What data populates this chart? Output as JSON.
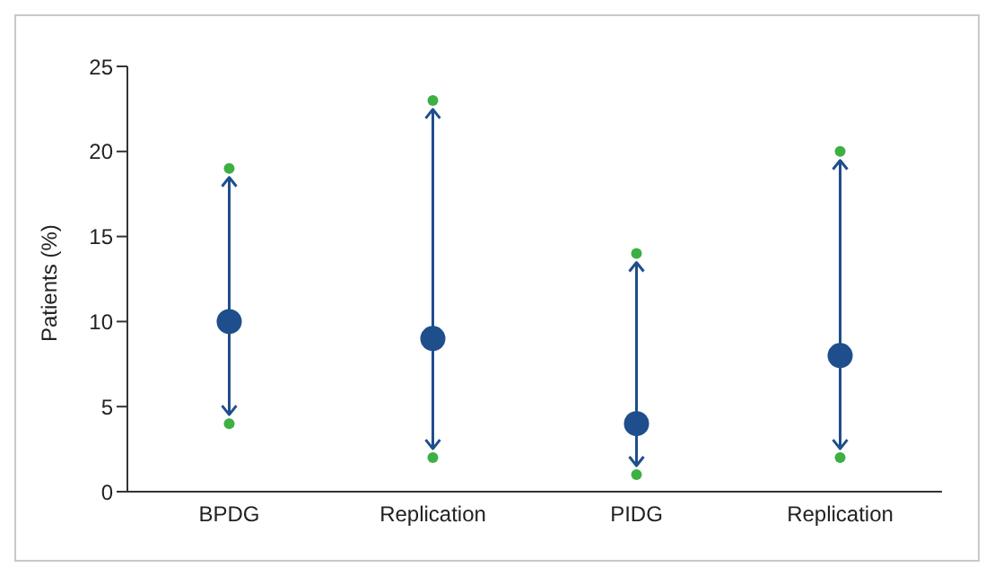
{
  "chart_data": {
    "type": "scatter",
    "ylabel": "Patients (%)",
    "categories": [
      "BPDG",
      "Replication",
      "PIDG",
      "Replication"
    ],
    "series": [
      {
        "color": "#1f4e8c",
        "values": [
          10,
          9,
          4,
          8
        ]
      },
      {
        "color": "#3cb043",
        "values": [
          4,
          2,
          1,
          2
        ]
      },
      {
        "color": "#3cb043",
        "values": [
          19,
          23,
          14,
          20
        ]
      }
    ],
    "ylim": [
      0,
      25
    ],
    "yticks": [
      0,
      5,
      10,
      15,
      20,
      25
    ],
    "grid": false,
    "legend": false,
    "marker": "circle"
  }
}
